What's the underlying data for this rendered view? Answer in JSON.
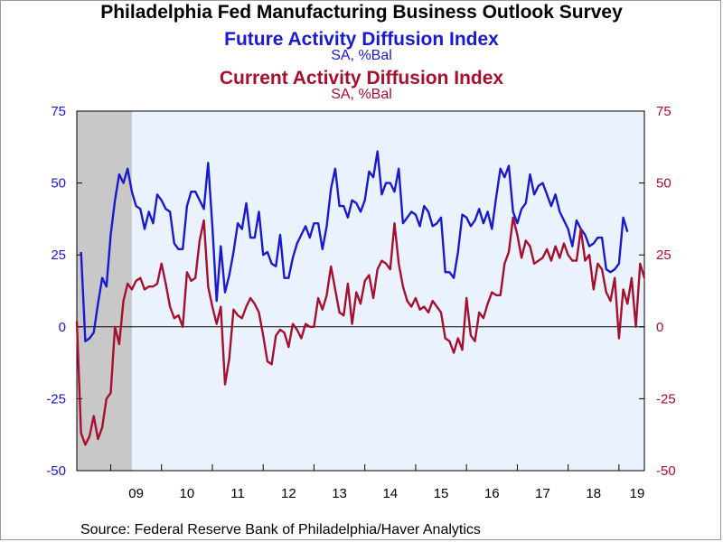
{
  "title": "Philadelphia Fed Manufacturing Business Outlook Survey",
  "source": "Source:  Federal Reserve Bank of Philadelphia/Haver Analytics",
  "colors": {
    "future": "#1a1acd",
    "current": "#a5102e",
    "plot_bg": "#eaf2fe",
    "recession": "#c8c8c8"
  },
  "chart_data": {
    "type": "line",
    "title": "Philadelphia Fed Manufacturing Business Outlook Survey",
    "xlabel": "",
    "ylabel": "",
    "ylim": [
      -50,
      75
    ],
    "y_ticks": [
      75,
      50,
      25,
      0,
      -25,
      -50
    ],
    "x_tick_labels": [
      "09",
      "10",
      "11",
      "12",
      "13",
      "14",
      "15",
      "16",
      "17",
      "18",
      "19"
    ],
    "x_range": [
      "2008-05",
      "2019-07"
    ],
    "grid": false,
    "zero_line": true,
    "shaded_periods": [
      {
        "label": "recession",
        "start": "2008-05",
        "end": "2009-06"
      }
    ],
    "series": [
      {
        "name": "Future Activity Diffusion Index",
        "unit": "SA, %Bal",
        "axis": "left",
        "start": "2008-06",
        "values": [
          26,
          -5,
          -4,
          -2,
          8,
          17,
          14,
          32,
          44,
          53,
          50,
          55,
          47,
          42,
          41,
          34,
          40,
          36,
          46,
          44,
          41,
          40,
          29,
          27,
          27,
          42,
          47,
          47,
          44,
          41,
          57,
          35,
          9,
          28,
          12,
          18,
          26,
          36,
          34,
          43,
          31,
          31,
          40,
          25,
          26,
          22,
          21,
          32,
          17,
          17,
          24,
          29,
          32,
          35,
          31,
          36,
          36,
          27,
          35,
          48,
          55,
          42,
          42,
          38,
          44,
          43,
          40,
          44,
          54,
          52,
          61,
          46,
          50,
          50,
          47,
          55,
          36,
          38,
          40,
          39,
          35,
          42,
          40,
          35,
          36,
          38,
          19,
          19,
          17,
          26,
          39,
          38,
          35,
          37,
          41,
          36,
          40,
          34,
          45,
          55,
          52,
          56,
          40,
          36,
          41,
          43,
          53,
          46,
          49,
          50,
          46,
          42,
          46,
          40,
          37,
          34,
          28,
          37,
          34,
          32,
          28,
          29,
          31,
          31,
          20,
          19,
          20,
          22,
          38,
          33
        ]
      },
      {
        "name": "Current Activity Diffusion Index",
        "unit": "SA, %Bal",
        "axis": "right",
        "start": "2008-05",
        "values": [
          2,
          -37,
          -41,
          -38,
          -31,
          -39,
          -35,
          -25,
          -23,
          0,
          -6,
          9,
          15,
          13,
          16,
          17,
          13,
          14,
          14,
          15,
          22,
          15,
          7,
          3,
          4,
          0,
          19,
          16,
          17,
          30,
          37,
          14,
          7,
          1,
          7,
          -20,
          -11,
          6,
          4,
          3,
          7,
          10,
          8,
          5,
          -3,
          -12,
          -13,
          -3,
          -1,
          -2,
          -7,
          1,
          -1,
          -4,
          1,
          0,
          0,
          10,
          6,
          11,
          21,
          13,
          5,
          4,
          15,
          1,
          12,
          8,
          16,
          18,
          10,
          20,
          23,
          22,
          20,
          36,
          22,
          14,
          9,
          7,
          10,
          6,
          7,
          5,
          9,
          7,
          5,
          -4,
          -5,
          -9,
          -4,
          -8,
          10,
          -3,
          -5,
          5,
          3,
          8,
          12,
          11,
          11,
          22,
          26,
          38,
          32,
          24,
          30,
          28,
          22,
          23,
          24,
          27,
          23,
          28,
          24,
          29,
          25,
          23,
          23,
          34,
          23,
          25,
          13,
          22,
          20,
          12,
          9,
          17,
          -4,
          13,
          8,
          17,
          0,
          22,
          17
        ]
      }
    ]
  }
}
